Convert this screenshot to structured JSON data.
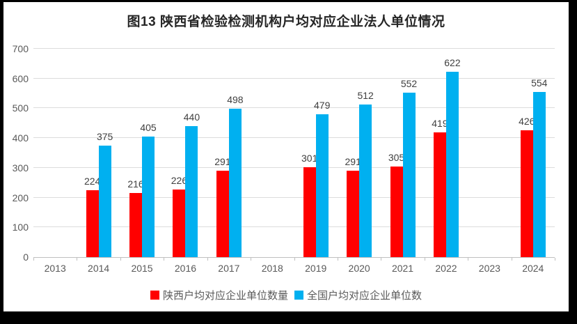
{
  "title": "图13  陕西省检验检测机构户均对应企业法人单位情况",
  "frame": {
    "border_color": "#000000",
    "background": "#ffffff"
  },
  "colors": {
    "series_shaanxi": "#ff0000",
    "series_national": "#00b0f0",
    "gridline": "#dcdcdc",
    "axis_text": "#595959",
    "data_label": "#3f3f3f",
    "title_text": "#262626"
  },
  "chart_data": {
    "type": "bar",
    "title": "图13  陕西省检验检测机构户均对应企业法人单位情况",
    "categories": [
      "2013",
      "2014",
      "2015",
      "2016",
      "2017",
      "2018",
      "2019",
      "2020",
      "2021",
      "2022",
      "2023",
      "2024"
    ],
    "series": [
      {
        "name": "陕西户均对应企业单位数量",
        "color": "#ff0000",
        "values": [
          null,
          224,
          216,
          226,
          291,
          null,
          301,
          291,
          305,
          419,
          null,
          426
        ]
      },
      {
        "name": "全国户均对应企业单位数",
        "color": "#00b0f0",
        "values": [
          null,
          375,
          405,
          440,
          498,
          null,
          479,
          512,
          552,
          622,
          null,
          554
        ]
      }
    ],
    "xlabel": "",
    "ylabel": "",
    "ylim": [
      0,
      700
    ],
    "yticks": [
      0,
      100,
      200,
      300,
      400,
      500,
      600,
      700
    ],
    "grid": true,
    "data_labels": true,
    "legend_position": "bottom"
  }
}
